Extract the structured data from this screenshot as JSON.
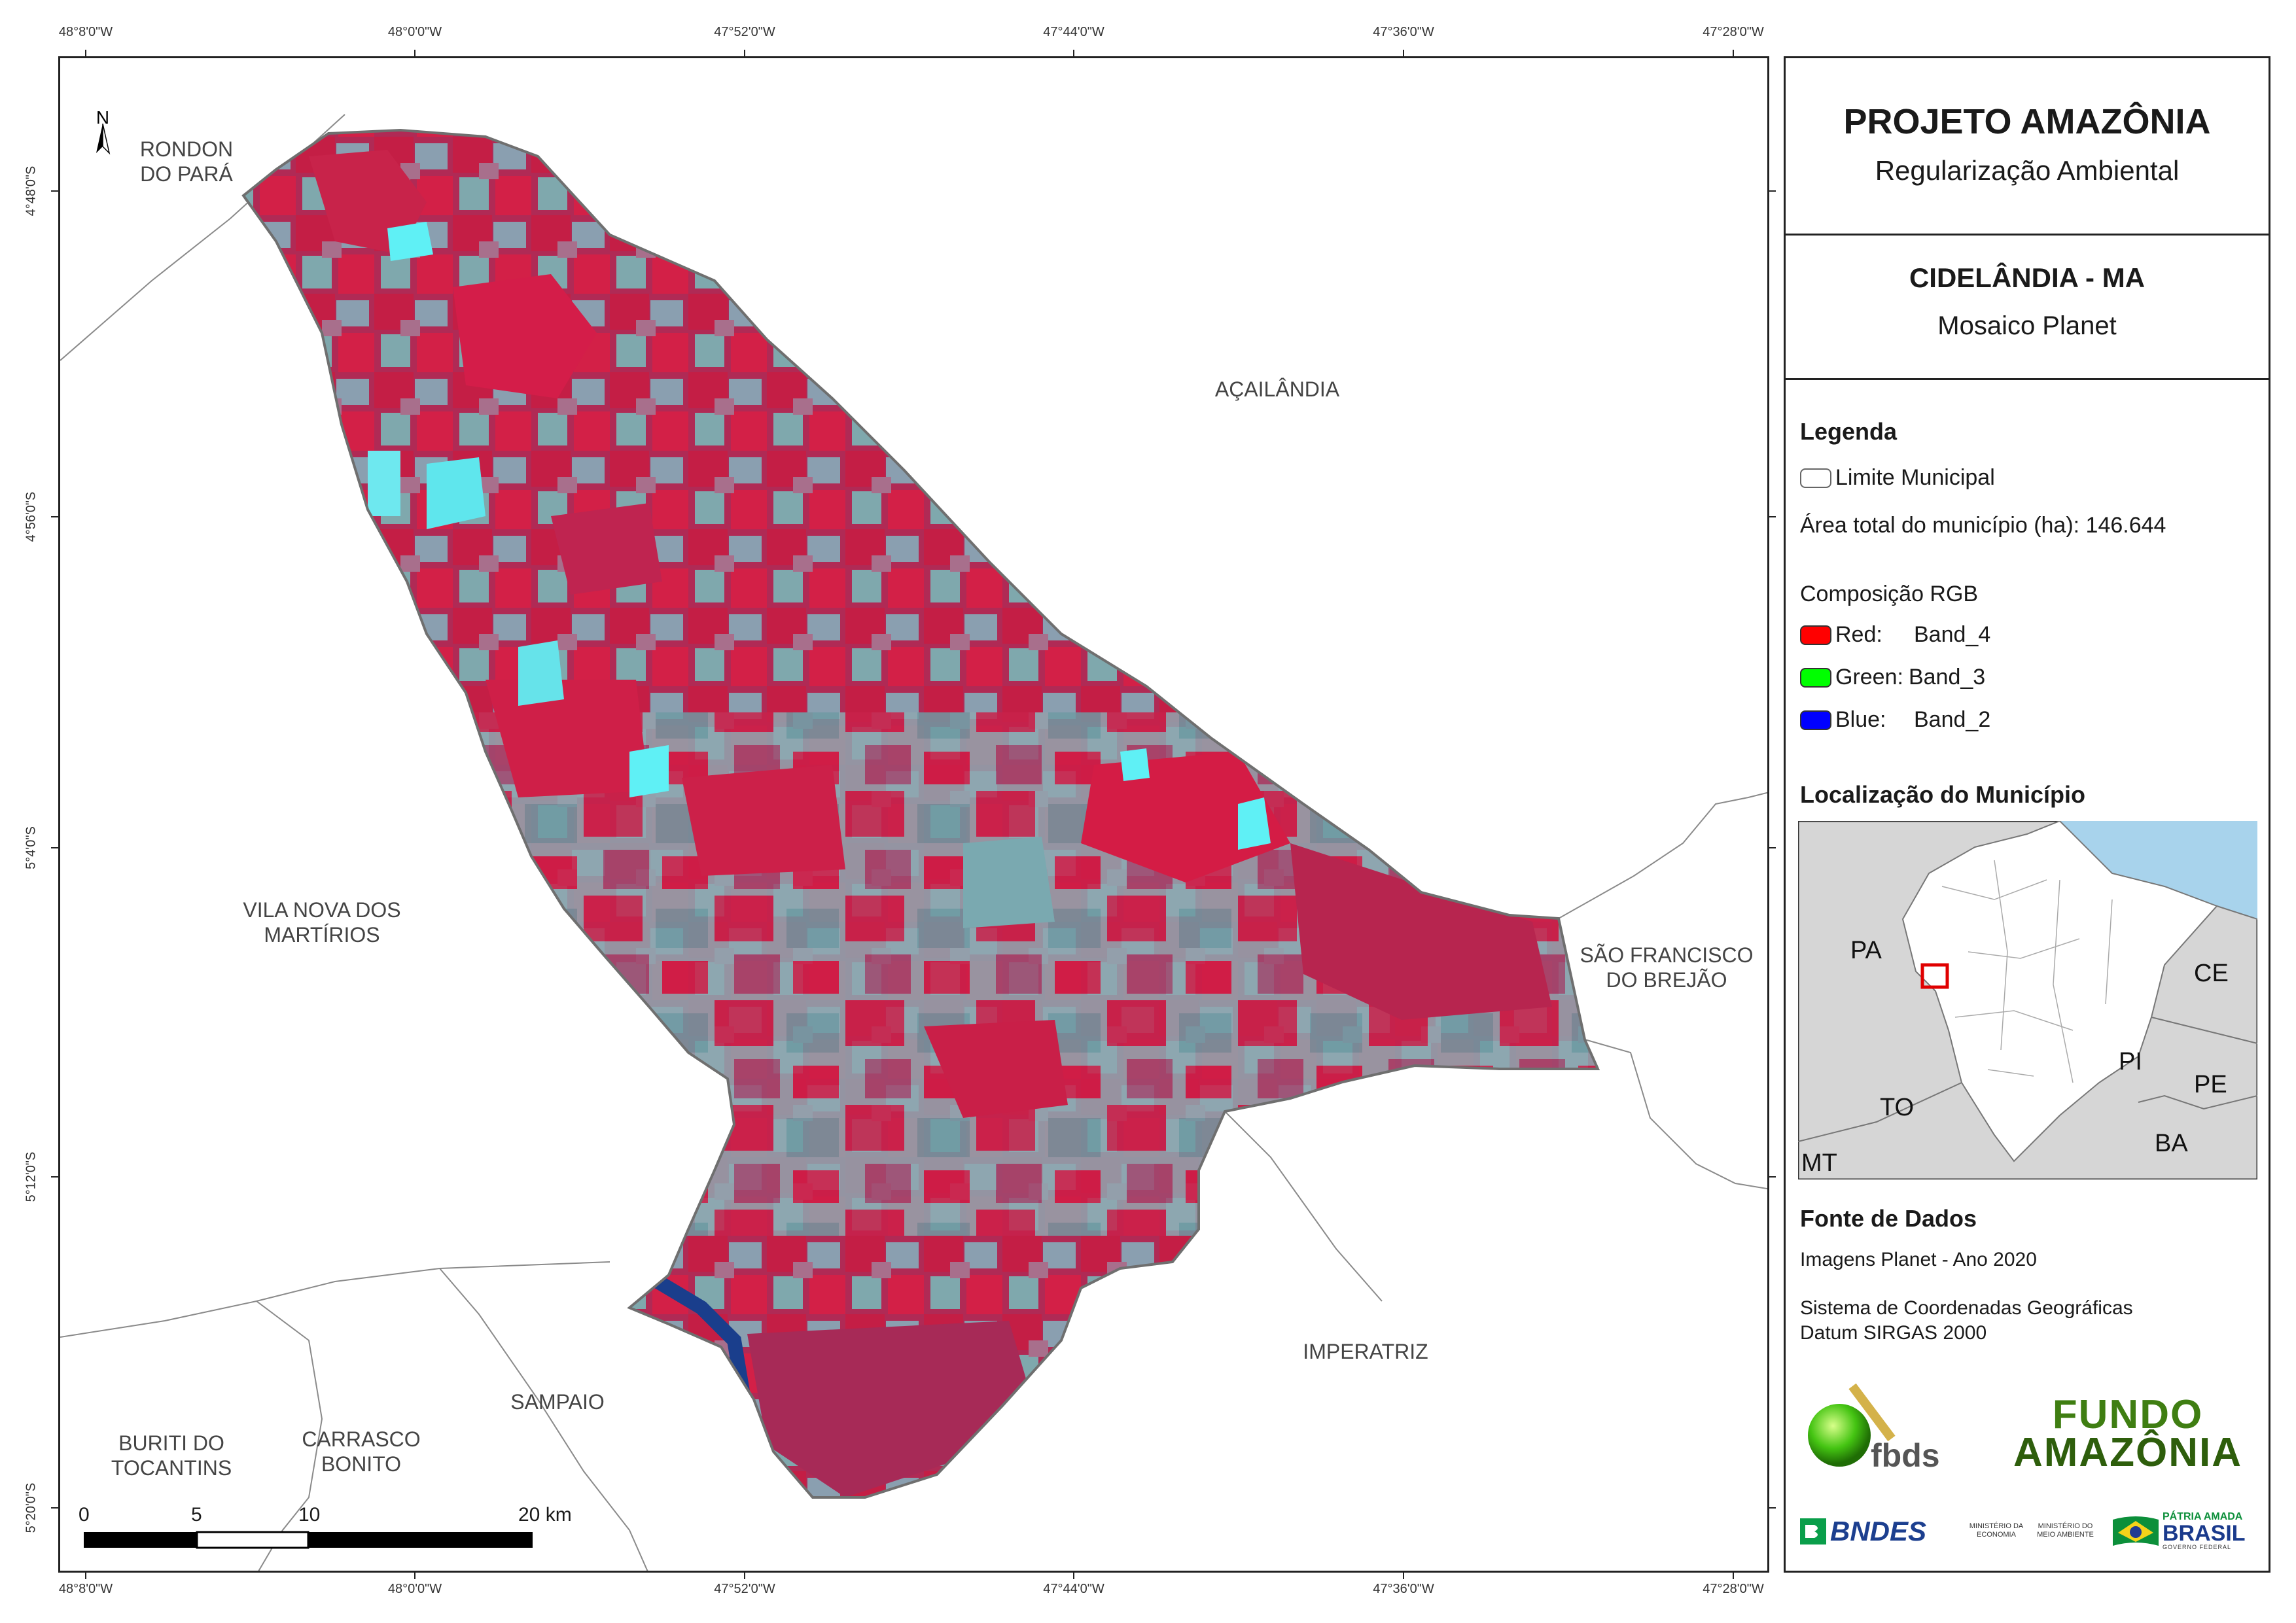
{
  "coords": {
    "longitudes": [
      "48°8'0\"W",
      "48°0'0\"W",
      "47°52'0\"W",
      "47°44'0\"W",
      "47°36'0\"W",
      "47°28'0\"W"
    ],
    "latitudes": [
      "4°48'0\"S",
      "4°56'0\"S",
      "5°4'0\"S",
      "5°12'0\"S",
      "5°20'0\"S"
    ]
  },
  "map": {
    "north_label": "N",
    "neighbors": {
      "rondon": "RONDON\nDO PARÁ",
      "acailandia": "AÇAILÂNDIA",
      "vila_nova": "VILA NOVA DOS\nMARTÍRIOS",
      "sao_francisco": "SÃO FRANCISCO\nDO BREJÃO",
      "imperatriz": "IMPERATRIZ",
      "sampaio": "SAMPAIO",
      "buriti": "BURITI DO\nTOCANTINS",
      "carrasco": "CARRASCO\nBONITO"
    },
    "scale": {
      "labels": [
        "0",
        "5",
        "10",
        "20 km"
      ]
    }
  },
  "panel": {
    "title": "PROJETO AMAZÔNIA",
    "subtitle": "Regularização Ambiental",
    "municipality": "CIDELÂNDIA - MA",
    "mosaic": "Mosaico Planet",
    "legend_title": "Legenda",
    "limit_label": "Limite Municipal",
    "area_label": "Área total do município (ha): 146.644",
    "rgb_title": "Composição RGB",
    "bands": [
      {
        "channel": "Red:",
        "band": "Band_4",
        "color": "#ff0000"
      },
      {
        "channel": "Green:",
        "band": "Band_3",
        "color": "#00ff00"
      },
      {
        "channel": "Blue:",
        "band": "Band_2",
        "color": "#0000ff"
      }
    ],
    "location_title": "Localização do Município",
    "locator_states": [
      "PA",
      "CE",
      "PI",
      "PE",
      "TO",
      "BA",
      "MT"
    ],
    "sources_title": "Fonte de Dados",
    "source_images": "Imagens Planet - Ano 2020",
    "crs_line1": "Sistema de Coordenadas Geográficas",
    "crs_line2": "Datum SIRGAS 2000",
    "logos": {
      "fbds": "fbds",
      "fundo_line1": "FUNDO",
      "fundo_line2": "AMAZÔNIA",
      "bndes": "BNDES",
      "min_economia": "MINISTÉRIO DA\nECONOMIA",
      "min_meio": "MINISTÉRIO DO\nMEIO AMBIENTE",
      "patria_line1": "PÁTRIA AMADA",
      "patria_line2": "BRASIL",
      "patria_line3": "GOVERNO FEDERAL"
    }
  },
  "colors": {
    "vegetation": "#c8234a",
    "cleared": "#7fa3a8",
    "cyan": "#5ff0f5",
    "water": "#1a3e8c",
    "frame": "#222222",
    "sea": "#a8d3ec"
  }
}
